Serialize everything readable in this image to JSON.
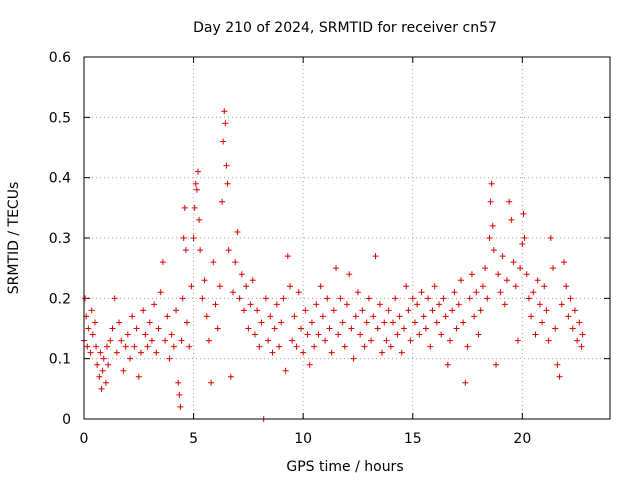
{
  "chart_data": {
    "type": "scatter",
    "title": "Day 210 of 2024, SRMTID for receiver cn57",
    "xlabel": "GPS time / hours",
    "ylabel": "SRMTID / TECUs",
    "xlim": [
      0,
      24
    ],
    "ylim": [
      0,
      0.6
    ],
    "xticks": [
      0,
      5,
      10,
      15,
      20
    ],
    "xtick_labels": [
      "0",
      "5",
      "10",
      "15",
      "20"
    ],
    "yticks": [
      0,
      0.1,
      0.2,
      0.3,
      0.4,
      0.5,
      0.6
    ],
    "ytick_labels": [
      "0",
      "0.1",
      "0.2",
      "0.3",
      "0.4",
      "0.5",
      "0.6"
    ],
    "grid": true,
    "marker": "+",
    "marker_color": "#e00000",
    "series": [
      {
        "name": "cn57",
        "points": [
          [
            0.0,
            0.13
          ],
          [
            0.05,
            0.2
          ],
          [
            0.1,
            0.17
          ],
          [
            0.15,
            0.12
          ],
          [
            0.2,
            0.15
          ],
          [
            0.3,
            0.11
          ],
          [
            0.35,
            0.18
          ],
          [
            0.4,
            0.14
          ],
          [
            0.5,
            0.16
          ],
          [
            0.55,
            0.12
          ],
          [
            0.6,
            0.09
          ],
          [
            0.7,
            0.07
          ],
          [
            0.75,
            0.11
          ],
          [
            0.8,
            0.05
          ],
          [
            0.85,
            0.08
          ],
          [
            0.9,
            0.1
          ],
          [
            1.0,
            0.06
          ],
          [
            1.05,
            0.12
          ],
          [
            1.1,
            0.09
          ],
          [
            1.2,
            0.13
          ],
          [
            1.3,
            0.15
          ],
          [
            1.4,
            0.2
          ],
          [
            1.5,
            0.11
          ],
          [
            1.6,
            0.16
          ],
          [
            1.7,
            0.13
          ],
          [
            1.8,
            0.08
          ],
          [
            1.9,
            0.12
          ],
          [
            2.0,
            0.14
          ],
          [
            2.1,
            0.1
          ],
          [
            2.2,
            0.17
          ],
          [
            2.3,
            0.12
          ],
          [
            2.4,
            0.15
          ],
          [
            2.5,
            0.07
          ],
          [
            2.6,
            0.11
          ],
          [
            2.7,
            0.18
          ],
          [
            2.8,
            0.14
          ],
          [
            2.9,
            0.12
          ],
          [
            3.0,
            0.16
          ],
          [
            3.1,
            0.13
          ],
          [
            3.2,
            0.19
          ],
          [
            3.3,
            0.11
          ],
          [
            3.4,
            0.15
          ],
          [
            3.5,
            0.21
          ],
          [
            3.6,
            0.26
          ],
          [
            3.7,
            0.13
          ],
          [
            3.8,
            0.17
          ],
          [
            3.9,
            0.1
          ],
          [
            4.0,
            0.14
          ],
          [
            4.1,
            0.12
          ],
          [
            4.2,
            0.18
          ],
          [
            4.3,
            0.06
          ],
          [
            4.35,
            0.04
          ],
          [
            4.4,
            0.02
          ],
          [
            4.45,
            0.13
          ],
          [
            4.5,
            0.2
          ],
          [
            4.55,
            0.3
          ],
          [
            4.6,
            0.35
          ],
          [
            4.65,
            0.28
          ],
          [
            4.7,
            0.16
          ],
          [
            4.8,
            0.12
          ],
          [
            4.9,
            0.22
          ],
          [
            5.0,
            0.3
          ],
          [
            5.05,
            0.35
          ],
          [
            5.1,
            0.39
          ],
          [
            5.15,
            0.38
          ],
          [
            5.2,
            0.41
          ],
          [
            5.25,
            0.33
          ],
          [
            5.3,
            0.28
          ],
          [
            5.4,
            0.2
          ],
          [
            5.5,
            0.23
          ],
          [
            5.6,
            0.17
          ],
          [
            5.7,
            0.13
          ],
          [
            5.8,
            0.06
          ],
          [
            5.9,
            0.26
          ],
          [
            6.0,
            0.19
          ],
          [
            6.1,
            0.15
          ],
          [
            6.2,
            0.22
          ],
          [
            6.3,
            0.36
          ],
          [
            6.35,
            0.46
          ],
          [
            6.4,
            0.51
          ],
          [
            6.45,
            0.49
          ],
          [
            6.5,
            0.42
          ],
          [
            6.55,
            0.39
          ],
          [
            6.6,
            0.28
          ],
          [
            6.7,
            0.07
          ],
          [
            6.8,
            0.21
          ],
          [
            6.9,
            0.26
          ],
          [
            7.0,
            0.31
          ],
          [
            7.1,
            0.2
          ],
          [
            7.2,
            0.24
          ],
          [
            7.3,
            0.18
          ],
          [
            7.4,
            0.22
          ],
          [
            7.5,
            0.15
          ],
          [
            7.6,
            0.19
          ],
          [
            7.7,
            0.23
          ],
          [
            7.8,
            0.14
          ],
          [
            7.9,
            0.18
          ],
          [
            8.0,
            0.12
          ],
          [
            8.1,
            0.16
          ],
          [
            8.2,
            0.0
          ],
          [
            8.3,
            0.2
          ],
          [
            8.4,
            0.13
          ],
          [
            8.5,
            0.17
          ],
          [
            8.6,
            0.11
          ],
          [
            8.7,
            0.15
          ],
          [
            8.8,
            0.19
          ],
          [
            8.9,
            0.12
          ],
          [
            9.0,
            0.16
          ],
          [
            9.1,
            0.2
          ],
          [
            9.2,
            0.08
          ],
          [
            9.3,
            0.27
          ],
          [
            9.4,
            0.22
          ],
          [
            9.5,
            0.13
          ],
          [
            9.6,
            0.17
          ],
          [
            9.7,
            0.12
          ],
          [
            9.8,
            0.21
          ],
          [
            9.9,
            0.15
          ],
          [
            10.0,
            0.11
          ],
          [
            10.1,
            0.18
          ],
          [
            10.2,
            0.14
          ],
          [
            10.3,
            0.09
          ],
          [
            10.4,
            0.16
          ],
          [
            10.5,
            0.12
          ],
          [
            10.6,
            0.19
          ],
          [
            10.7,
            0.14
          ],
          [
            10.8,
            0.22
          ],
          [
            10.9,
            0.17
          ],
          [
            11.0,
            0.13
          ],
          [
            11.1,
            0.2
          ],
          [
            11.2,
            0.15
          ],
          [
            11.3,
            0.11
          ],
          [
            11.4,
            0.18
          ],
          [
            11.5,
            0.25
          ],
          [
            11.6,
            0.14
          ],
          [
            11.7,
            0.2
          ],
          [
            11.8,
            0.16
          ],
          [
            11.9,
            0.12
          ],
          [
            12.0,
            0.19
          ],
          [
            12.1,
            0.24
          ],
          [
            12.2,
            0.15
          ],
          [
            12.3,
            0.1
          ],
          [
            12.4,
            0.17
          ],
          [
            12.5,
            0.21
          ],
          [
            12.6,
            0.14
          ],
          [
            12.7,
            0.18
          ],
          [
            12.8,
            0.12
          ],
          [
            12.9,
            0.16
          ],
          [
            13.0,
            0.2
          ],
          [
            13.1,
            0.13
          ],
          [
            13.2,
            0.17
          ],
          [
            13.3,
            0.27
          ],
          [
            13.4,
            0.15
          ],
          [
            13.5,
            0.19
          ],
          [
            13.6,
            0.11
          ],
          [
            13.7,
            0.16
          ],
          [
            13.8,
            0.13
          ],
          [
            13.9,
            0.18
          ],
          [
            14.0,
            0.12
          ],
          [
            14.1,
            0.16
          ],
          [
            14.2,
            0.2
          ],
          [
            14.3,
            0.14
          ],
          [
            14.4,
            0.17
          ],
          [
            14.5,
            0.11
          ],
          [
            14.6,
            0.15
          ],
          [
            14.7,
            0.22
          ],
          [
            14.8,
            0.18
          ],
          [
            14.9,
            0.13
          ],
          [
            15.0,
            0.2
          ],
          [
            15.1,
            0.16
          ],
          [
            15.2,
            0.19
          ],
          [
            15.3,
            0.14
          ],
          [
            15.4,
            0.21
          ],
          [
            15.5,
            0.17
          ],
          [
            15.6,
            0.15
          ],
          [
            15.7,
            0.2
          ],
          [
            15.8,
            0.12
          ],
          [
            15.9,
            0.18
          ],
          [
            16.0,
            0.22
          ],
          [
            16.1,
            0.16
          ],
          [
            16.2,
            0.19
          ],
          [
            16.3,
            0.14
          ],
          [
            16.4,
            0.2
          ],
          [
            16.5,
            0.17
          ],
          [
            16.6,
            0.09
          ],
          [
            16.7,
            0.13
          ],
          [
            16.8,
            0.18
          ],
          [
            16.9,
            0.21
          ],
          [
            17.0,
            0.15
          ],
          [
            17.1,
            0.19
          ],
          [
            17.2,
            0.23
          ],
          [
            17.3,
            0.16
          ],
          [
            17.4,
            0.06
          ],
          [
            17.5,
            0.12
          ],
          [
            17.6,
            0.2
          ],
          [
            17.7,
            0.24
          ],
          [
            17.8,
            0.17
          ],
          [
            17.9,
            0.21
          ],
          [
            18.0,
            0.14
          ],
          [
            18.1,
            0.18
          ],
          [
            18.2,
            0.22
          ],
          [
            18.3,
            0.25
          ],
          [
            18.4,
            0.2
          ],
          [
            18.5,
            0.3
          ],
          [
            18.55,
            0.36
          ],
          [
            18.6,
            0.39
          ],
          [
            18.65,
            0.32
          ],
          [
            18.7,
            0.28
          ],
          [
            18.8,
            0.09
          ],
          [
            18.9,
            0.24
          ],
          [
            19.0,
            0.21
          ],
          [
            19.1,
            0.27
          ],
          [
            19.2,
            0.19
          ],
          [
            19.3,
            0.23
          ],
          [
            19.4,
            0.36
          ],
          [
            19.5,
            0.33
          ],
          [
            19.6,
            0.26
          ],
          [
            19.7,
            0.22
          ],
          [
            19.8,
            0.13
          ],
          [
            19.9,
            0.25
          ],
          [
            20.0,
            0.29
          ],
          [
            20.05,
            0.34
          ],
          [
            20.1,
            0.3
          ],
          [
            20.2,
            0.24
          ],
          [
            20.3,
            0.2
          ],
          [
            20.4,
            0.17
          ],
          [
            20.5,
            0.21
          ],
          [
            20.6,
            0.14
          ],
          [
            20.7,
            0.23
          ],
          [
            20.8,
            0.19
          ],
          [
            20.9,
            0.16
          ],
          [
            21.0,
            0.22
          ],
          [
            21.1,
            0.18
          ],
          [
            21.2,
            0.13
          ],
          [
            21.3,
            0.3
          ],
          [
            21.4,
            0.25
          ],
          [
            21.5,
            0.15
          ],
          [
            21.6,
            0.09
          ],
          [
            21.7,
            0.07
          ],
          [
            21.8,
            0.19
          ],
          [
            21.9,
            0.26
          ],
          [
            22.0,
            0.22
          ],
          [
            22.1,
            0.17
          ],
          [
            22.2,
            0.2
          ],
          [
            22.3,
            0.15
          ],
          [
            22.4,
            0.18
          ],
          [
            22.5,
            0.13
          ],
          [
            22.6,
            0.16
          ],
          [
            22.7,
            0.12
          ],
          [
            22.75,
            0.14
          ]
        ]
      }
    ]
  }
}
